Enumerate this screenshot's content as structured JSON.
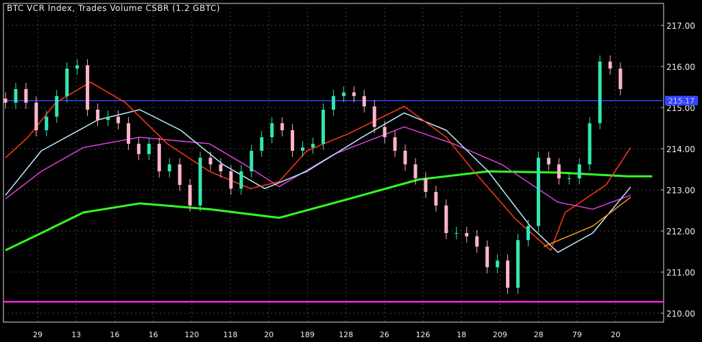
{
  "chart_data": {
    "type": "candlestick",
    "title": "BTC VCR Index, Trades Volume CSBR (1.2 GBTC)",
    "ylim": [
      210,
      217
    ],
    "y_ticks": [
      "217.00",
      "216.00",
      "215.00",
      "214.00",
      "213.00",
      "212.00",
      "211.00",
      "210.00"
    ],
    "x_ticks": [
      "29",
      "13",
      "16",
      "16",
      "120",
      "118",
      "20",
      "189",
      "128",
      "26",
      "126",
      "18",
      "209",
      "28",
      "79",
      "20"
    ],
    "grid": true,
    "background": "#000000",
    "up_color": "#33e6b0",
    "down_color": "#ffb6c8",
    "closes": [
      215.12,
      215.45,
      215.12,
      214.45,
      214.78,
      215.28,
      215.95,
      216.03,
      214.95,
      214.7,
      214.78,
      214.62,
      214.12,
      213.87,
      214.12,
      213.45,
      213.62,
      213.12,
      212.62,
      213.78,
      213.62,
      213.45,
      213.03,
      213.45,
      213.95,
      214.28,
      214.62,
      214.45,
      213.95,
      214.03,
      214.12,
      214.95,
      215.28,
      215.37,
      215.28,
      215.03,
      214.53,
      214.28,
      213.95,
      213.62,
      213.28,
      212.95,
      212.62,
      211.95,
      211.95,
      211.87,
      211.62,
      211.12,
      211.28,
      210.62,
      211.78,
      212.12,
      213.78,
      213.62,
      213.28,
      213.28,
      213.62,
      214.62,
      216.12,
      215.95,
      215.45
    ],
    "moving_averages": [
      {
        "color": "#33ff22",
        "points": [
          [
            0,
            211.53
          ],
          [
            3.5,
            211.95
          ],
          [
            7.6,
            212.45
          ],
          [
            13.1,
            212.67
          ],
          [
            19.9,
            212.53
          ],
          [
            26.7,
            212.32
          ],
          [
            33.5,
            212.78
          ],
          [
            40.3,
            213.25
          ],
          [
            47.1,
            213.45
          ],
          [
            53.9,
            213.42
          ],
          [
            60.7,
            213.33
          ],
          [
            63.1,
            213.33
          ]
        ]
      },
      {
        "color": "#e040e0",
        "points": [
          [
            0,
            212.78
          ],
          [
            3.5,
            213.45
          ],
          [
            7.6,
            214.03
          ],
          [
            13.1,
            214.28
          ],
          [
            19.9,
            214.12
          ],
          [
            23.3,
            213.62
          ],
          [
            26.7,
            213.08
          ],
          [
            32.1,
            213.87
          ],
          [
            38.9,
            214.53
          ],
          [
            43.7,
            214.12
          ],
          [
            48.4,
            213.62
          ],
          [
            53.9,
            212.7
          ],
          [
            57.3,
            212.53
          ],
          [
            61,
            212.87
          ]
        ]
      },
      {
        "color": "#bfefff",
        "points": [
          [
            0,
            212.87
          ],
          [
            3.5,
            213.95
          ],
          [
            9.0,
            214.7
          ],
          [
            13.1,
            214.95
          ],
          [
            17.1,
            214.45
          ],
          [
            21.2,
            213.62
          ],
          [
            25.3,
            213.03
          ],
          [
            29.4,
            213.45
          ],
          [
            34.8,
            214.28
          ],
          [
            38.9,
            214.87
          ],
          [
            43.0,
            214.45
          ],
          [
            47.1,
            213.45
          ],
          [
            51.2,
            212.12
          ],
          [
            53.9,
            211.48
          ],
          [
            57.3,
            211.95
          ],
          [
            61,
            213.07
          ]
        ]
      },
      {
        "color": "#ff3a1a",
        "points": [
          [
            0,
            213.78
          ],
          [
            2.2,
            214.28
          ],
          [
            4.9,
            215.12
          ],
          [
            8.3,
            215.62
          ],
          [
            11.7,
            215.12
          ],
          [
            15.8,
            214.12
          ],
          [
            19.9,
            213.45
          ],
          [
            23.9,
            213.03
          ],
          [
            26.7,
            213.2
          ],
          [
            29.4,
            213.95
          ],
          [
            33.5,
            214.37
          ],
          [
            38.9,
            215.03
          ],
          [
            43.0,
            214.28
          ],
          [
            45.7,
            213.45
          ],
          [
            49.8,
            212.28
          ],
          [
            53.2,
            211.53
          ],
          [
            54.6,
            212.45
          ],
          [
            58.6,
            213.12
          ],
          [
            61,
            214.03
          ]
        ]
      },
      {
        "color": "#ff9a1a",
        "points": [
          [
            52.5,
            211.62
          ],
          [
            57.3,
            212.12
          ],
          [
            61,
            212.82
          ]
        ]
      }
    ],
    "horizontal_lines": [
      {
        "price": 215.17,
        "color": "#3344ff",
        "label": "215.17"
      },
      {
        "price": 210.28,
        "color": "#ff22dd"
      }
    ]
  }
}
